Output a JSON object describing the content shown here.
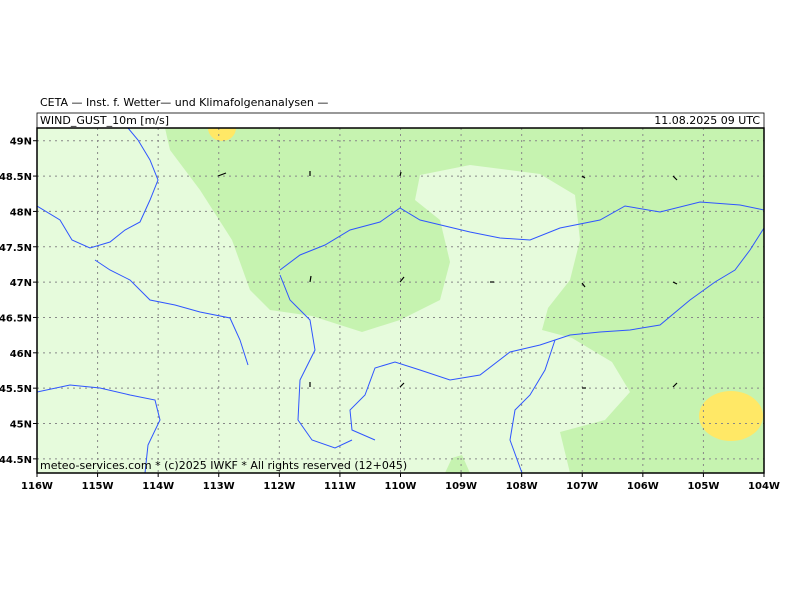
{
  "header": {
    "title": "CETA — Inst. f. Wetter— und Klimafolgenanalysen —",
    "parameter": "WIND_GUST_10m [m/s]",
    "valid_time": "11.08.2025 09 UTC"
  },
  "map": {
    "lon_range": [
      -116,
      -104
    ],
    "lat_range": [
      44.3,
      49.18
    ],
    "lon_ticks": [
      {
        "value": -116,
        "label": "116W"
      },
      {
        "value": -115,
        "label": "115W"
      },
      {
        "value": -114,
        "label": "114W"
      },
      {
        "value": -113,
        "label": "113W"
      },
      {
        "value": -112,
        "label": "112W"
      },
      {
        "value": -111,
        "label": "111W"
      },
      {
        "value": -110,
        "label": "110W"
      },
      {
        "value": -109,
        "label": "109W"
      },
      {
        "value": -108,
        "label": "108W"
      },
      {
        "value": -107,
        "label": "107W"
      },
      {
        "value": -106,
        "label": "106W"
      },
      {
        "value": -105,
        "label": "105W"
      },
      {
        "value": -104,
        "label": "104W"
      }
    ],
    "lat_ticks": [
      {
        "value": 49,
        "label": "49N"
      },
      {
        "value": 48.5,
        "label": "48.5N"
      },
      {
        "value": 48,
        "label": "48N"
      },
      {
        "value": 47.5,
        "label": "47.5N"
      },
      {
        "value": 47,
        "label": "47N"
      },
      {
        "value": 46.5,
        "label": "46.5N"
      },
      {
        "value": 46,
        "label": "46N"
      },
      {
        "value": 45.5,
        "label": "45.5N"
      },
      {
        "value": 45,
        "label": "45N"
      },
      {
        "value": 44.5,
        "label": "44.5N"
      }
    ]
  },
  "footer": "meteo-services.com * (c)2025 IWKF * All rights reserved (12+045)"
}
